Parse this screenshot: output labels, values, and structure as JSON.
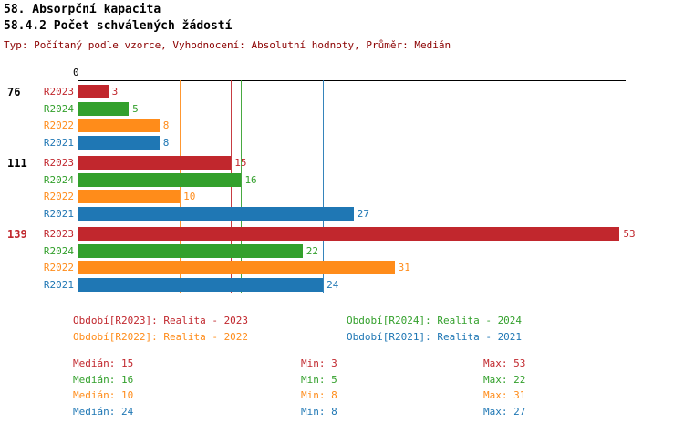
{
  "title": "58. Absorpční kapacita",
  "subtitle": "58.4.2 Počet schválených žádostí",
  "meta_line": "Typ: Počítaný podle vzorce, Vyhodnocení: Absolutní hodnoty, Průměr: Medián",
  "colors": {
    "R2023": "#C1272D",
    "R2024": "#33A02C",
    "R2022": "#FF8C1A",
    "R2021": "#1F77B4",
    "axis": "#000000",
    "meta_text": "#8B0000",
    "total_default": "#000000",
    "total_highlight": "#C1272D"
  },
  "chart_data": {
    "type": "bar",
    "orientation": "horizontal",
    "title": "58.4.2 Počet schválených žádostí",
    "x_axis": {
      "start_label": "0",
      "xlim": [
        0,
        53.5
      ],
      "gridlines": "median-lines-only"
    },
    "series_order": [
      "R2023",
      "R2024",
      "R2022",
      "R2021"
    ],
    "groups": [
      {
        "total": "76",
        "highlight": false,
        "bars": [
          {
            "series": "R2023",
            "value": 3
          },
          {
            "series": "R2024",
            "value": 5
          },
          {
            "series": "R2022",
            "value": 8
          },
          {
            "series": "R2021",
            "value": 8
          }
        ]
      },
      {
        "total": "111",
        "highlight": false,
        "bars": [
          {
            "series": "R2023",
            "value": 15
          },
          {
            "series": "R2024",
            "value": 16
          },
          {
            "series": "R2022",
            "value": 10
          },
          {
            "series": "R2021",
            "value": 27
          }
        ]
      },
      {
        "total": "139",
        "highlight": true,
        "bars": [
          {
            "series": "R2023",
            "value": 53
          },
          {
            "series": "R2024",
            "value": 22
          },
          {
            "series": "R2022",
            "value": 31
          },
          {
            "series": "R2021",
            "value": 24
          }
        ]
      }
    ],
    "median_lines": [
      {
        "series": "R2022",
        "value": 10
      },
      {
        "series": "R2023",
        "value": 15
      },
      {
        "series": "R2024",
        "value": 16
      },
      {
        "series": "R2021",
        "value": 24
      }
    ]
  },
  "legend": [
    {
      "series": "R2023",
      "label": "Období[R2023]:",
      "value": "Realita - 2023"
    },
    {
      "series": "R2024",
      "label": "Období[R2024]:",
      "value": "Realita - 2024"
    },
    {
      "series": "R2022",
      "label": "Období[R2022]:",
      "value": "Realita - 2022"
    },
    {
      "series": "R2021",
      "label": "Období[R2021]:",
      "value": "Realita - 2021"
    }
  ],
  "stats": [
    {
      "series": "R2023",
      "median": "Medián: 15",
      "min": "Min: 3",
      "max": "Max: 53"
    },
    {
      "series": "R2024",
      "median": "Medián: 16",
      "min": "Min: 5",
      "max": "Max: 22"
    },
    {
      "series": "R2022",
      "median": "Medián: 10",
      "min": "Min: 8",
      "max": "Max: 31"
    },
    {
      "series": "R2021",
      "median": "Medián: 24",
      "min": "Min: 8",
      "max": "Max: 27"
    }
  ]
}
